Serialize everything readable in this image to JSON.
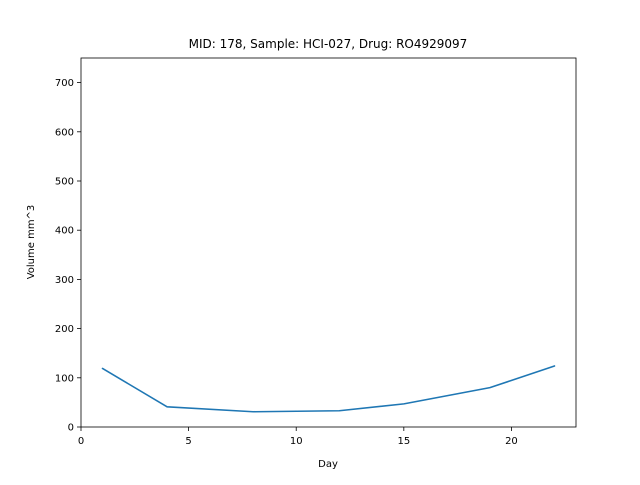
{
  "chart_data": {
    "type": "line",
    "title": "MID: 178, Sample: HCI-027, Drug: RO4929097",
    "xlabel": "Day",
    "ylabel": "Volume mm^3",
    "xlim": [
      0,
      23
    ],
    "ylim": [
      0,
      750
    ],
    "x_ticks": [
      0,
      5,
      10,
      15,
      20
    ],
    "y_ticks": [
      0,
      100,
      200,
      300,
      400,
      500,
      600,
      700
    ],
    "grid": false,
    "legend": "none",
    "series": [
      {
        "color": "#1f77b4",
        "x": [
          1,
          4,
          8,
          12,
          15,
          19,
          22
        ],
        "y": [
          119,
          41,
          31,
          33,
          47,
          80,
          124
        ]
      }
    ]
  }
}
